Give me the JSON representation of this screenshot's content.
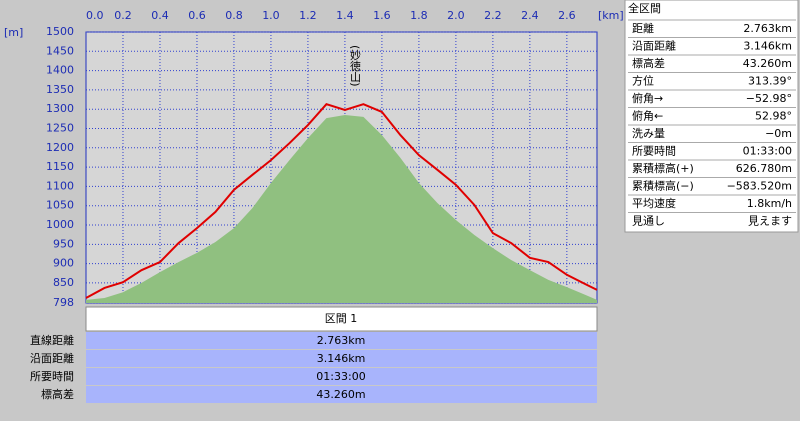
{
  "chart_data": {
    "type": "line",
    "x": [
      0,
      0.1,
      0.2,
      0.3,
      0.4,
      0.5,
      0.6,
      0.7,
      0.8,
      0.9,
      1.0,
      1.1,
      1.2,
      1.3,
      1.4,
      1.5,
      1.6,
      1.7,
      1.8,
      1.9,
      2.0,
      2.1,
      2.2,
      2.3,
      2.4,
      2.5,
      2.6,
      2.7,
      2.763
    ],
    "series": [
      {
        "color": "#90c080",
        "area": true,
        "values": [
          806,
          811,
          826,
          850,
          878,
          904,
          928,
          956,
          992,
          1044,
          1109,
          1168,
          1225,
          1277,
          1285,
          1280,
          1233,
          1174,
          1109,
          1057,
          1013,
          974,
          940,
          909,
          883,
          858,
          839,
          819,
          806
        ]
      },
      {
        "color": "#e00000",
        "area": false,
        "values": [
          811,
          837,
          852,
          883,
          904,
          953,
          992,
          1034,
          1091,
          1130,
          1168,
          1212,
          1259,
          1313,
          1298,
          1313,
          1293,
          1233,
          1181,
          1143,
          1104,
          1052,
          979,
          953,
          915,
          904,
          871,
          847,
          832
        ]
      }
    ],
    "xlim": [
      0,
      2.763
    ],
    "xticks": [
      {
        "value": 0,
        "label": "0.0"
      },
      0.2,
      0.4,
      0.6,
      0.8,
      {
        "value": 1,
        "label": "1.0"
      },
      1.2,
      1.4,
      1.6,
      1.8,
      {
        "value": 2,
        "label": "2.0"
      },
      2.2,
      2.4,
      2.6
    ],
    "ylim": [
      798,
      1500
    ],
    "yticks": [
      798,
      850,
      900,
      950,
      1000,
      1050,
      1100,
      1150,
      1200,
      1250,
      1300,
      1350,
      1400,
      1450,
      1500
    ],
    "x_unit": "[km]",
    "y_unit": "[m]",
    "annotation": "(妙徳山)",
    "grid": true
  },
  "summary": {
    "title": "全区間",
    "rows": [
      [
        "距離",
        "2.763km"
      ],
      [
        "沿面距離",
        "3.146km"
      ],
      [
        "標高差",
        "43.260m"
      ],
      [
        "方位",
        "313.39°"
      ],
      [
        "俯角→",
        "−52.98°"
      ],
      [
        "俯角←",
        "52.98°"
      ],
      [
        "洗み量",
        "−0m"
      ],
      [
        "所要時間",
        "01:33:00"
      ],
      [
        "累積標高(+)",
        "626.780m"
      ],
      [
        "累積標高(−)",
        "−583.520m"
      ],
      [
        "平均速度",
        "1.8km/h"
      ],
      [
        "見通し",
        "見えます"
      ]
    ]
  },
  "section": {
    "title": "区間 1",
    "rows": [
      [
        "直線距離",
        "2.763km"
      ],
      [
        "沿面距離",
        "3.146km"
      ],
      [
        "所要時間",
        "01:33:00"
      ],
      [
        "標高差",
        "43.260m"
      ]
    ]
  }
}
